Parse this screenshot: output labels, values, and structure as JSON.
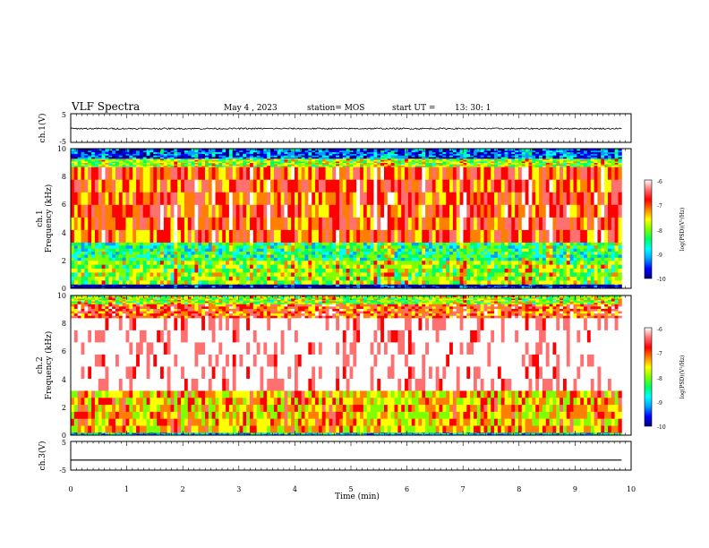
{
  "header": {
    "title": "VLF Spectra",
    "date": "May 4 , 2023",
    "station": "station= MOS",
    "start_label": "start UT =",
    "start_time": "13: 30: 1"
  },
  "chart_data": [
    {
      "type": "line",
      "name": "ch1-waveform",
      "ylabel": "ch.1(V)",
      "ylim": [
        -5,
        5
      ],
      "ytick_labels": [
        "5",
        "-5"
      ],
      "x_range_min": [
        0,
        9.83
      ],
      "level_v": -0.2,
      "noise_v": 0.25
    },
    {
      "type": "heatmap",
      "name": "ch1-spectrogram",
      "ylabel": "ch.1",
      "ylabel2": "Frequency (kHz)",
      "ylim": [
        0,
        10
      ],
      "ytick_labels": [
        "0",
        "2",
        "4",
        "6",
        "8",
        "10"
      ],
      "x_range_min": [
        0,
        9.83
      ],
      "bands_khz": [
        {
          "from": 0.0,
          "to": 0.3,
          "level": "-10"
        },
        {
          "from": 0.3,
          "to": 2.0,
          "level": "-8"
        },
        {
          "from": 2.0,
          "to": 3.3,
          "level": "-8.5"
        },
        {
          "from": 3.3,
          "to": 8.7,
          "level": "-7"
        },
        {
          "from": 8.7,
          "to": 9.3,
          "level": "-8"
        },
        {
          "from": 9.3,
          "to": 10.0,
          "level": "-9.5"
        }
      ],
      "colorbar": {
        "min": -10,
        "max": -6,
        "tick_labels": [
          "-6",
          "-7",
          "-8",
          "-9",
          "-10"
        ],
        "label": "log(PSD)(V²/Hz)"
      }
    },
    {
      "type": "heatmap",
      "name": "ch2-spectrogram",
      "ylabel": "ch.2",
      "ylabel2": "Frequency (kHz)",
      "ylim": [
        0,
        10
      ],
      "ytick_labels": [
        "0",
        "2",
        "4",
        "6",
        "8",
        "10"
      ],
      "x_range_min": [
        0,
        9.83
      ],
      "bands_khz": [
        {
          "from": 0.0,
          "to": 0.2,
          "level": "-9"
        },
        {
          "from": 0.2,
          "to": 3.2,
          "level": "-7.5"
        },
        {
          "from": 3.2,
          "to": 8.4,
          "level": "-6"
        },
        {
          "from": 8.4,
          "to": 9.4,
          "level": "-7"
        },
        {
          "from": 9.4,
          "to": 10.0,
          "level": "-8"
        }
      ],
      "colorbar": {
        "min": -10,
        "max": -6,
        "tick_labels": [
          "-6",
          "-7",
          "-8",
          "-9",
          "-10"
        ],
        "label": "log(PSD)(V²/Hz)"
      }
    },
    {
      "type": "line",
      "name": "ch3-waveform",
      "ylabel": "ch.3(V)",
      "ylim": [
        -5,
        5
      ],
      "ytick_labels": [
        "5",
        "-5"
      ],
      "x_range_min": [
        0,
        9.83
      ],
      "level_v": -1.5,
      "noise_v": 0.0
    }
  ],
  "xaxis": {
    "label": "Time (min)",
    "xlim": [
      0,
      10
    ],
    "ticks": [
      0,
      1,
      2,
      3,
      4,
      5,
      6,
      7,
      8,
      9,
      10
    ],
    "tick_labels": [
      "0",
      "1",
      "2",
      "3",
      "4",
      "5",
      "6",
      "7",
      "8",
      "9",
      "10"
    ]
  },
  "colors": {
    "colormap": [
      "#000080",
      "#0000ff",
      "#00a0ff",
      "#00ffff",
      "#00ff60",
      "#80ff00",
      "#ffff00",
      "#ff8000",
      "#ff0000",
      "#ff7070",
      "#ffffff"
    ]
  }
}
